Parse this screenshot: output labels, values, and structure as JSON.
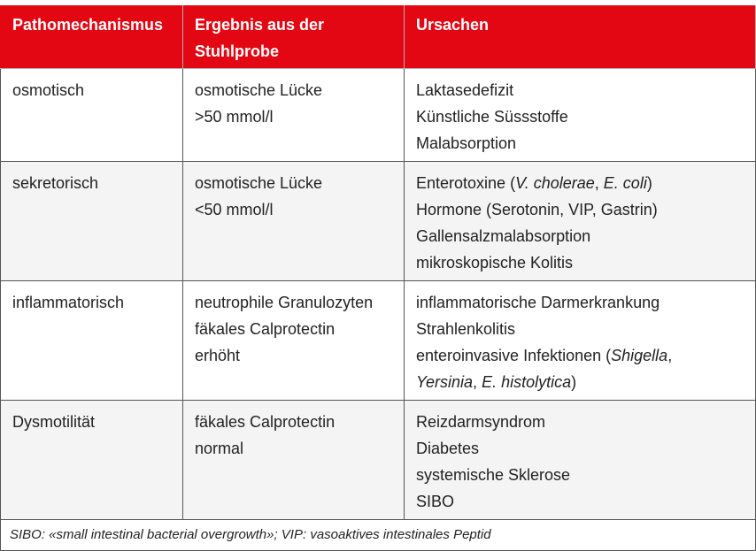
{
  "table": {
    "headers": [
      "Pathomechanismus",
      "Ergebnis aus der Stuhlprobe",
      "Ursachen"
    ],
    "accent_color": "#e30613",
    "rows": [
      {
        "mechanism": "osmotisch",
        "result": [
          [
            {
              "t": "osmotische Lücke"
            }
          ],
          [
            {
              "t": ">50 mmol/l"
            }
          ]
        ],
        "causes": [
          [
            {
              "t": "Laktasedefizit"
            }
          ],
          [
            {
              "t": "Künstliche Süssstoffe"
            }
          ],
          [
            {
              "t": "Malabsorption"
            }
          ]
        ]
      },
      {
        "mechanism": "sekretorisch",
        "result": [
          [
            {
              "t": "osmotische Lücke"
            }
          ],
          [
            {
              "t": "<50 mmol/l"
            }
          ]
        ],
        "causes": [
          [
            {
              "t": "Enterotoxine ("
            },
            {
              "t": "V. cholerae",
              "i": true
            },
            {
              "t": ", "
            },
            {
              "t": "E. coli",
              "i": true
            },
            {
              "t": ")"
            }
          ],
          [
            {
              "t": "Hormone (Serotonin, VIP, Gastrin)"
            }
          ],
          [
            {
              "t": "Gallensalzmalabsorption"
            }
          ],
          [
            {
              "t": "mikroskopische Kolitis"
            }
          ]
        ]
      },
      {
        "mechanism": "inflammatorisch",
        "result": [
          [
            {
              "t": "neutrophile Granulozyten"
            }
          ],
          [
            {
              "t": "fäkales Calprotectin"
            }
          ],
          [
            {
              "t": "erhöht"
            }
          ]
        ],
        "causes": [
          [
            {
              "t": "inflammatorische Darmerkrankung"
            }
          ],
          [
            {
              "t": "Strahlenkolitis"
            }
          ],
          [
            {
              "t": "enteroinvasive Infektionen ("
            },
            {
              "t": "Shigella",
              "i": true
            },
            {
              "t": ","
            }
          ],
          [
            {
              "t": "Yersinia",
              "i": true
            },
            {
              "t": ", "
            },
            {
              "t": "E. histolytica",
              "i": true
            },
            {
              "t": ")"
            }
          ]
        ]
      },
      {
        "mechanism": "Dysmotilität",
        "result": [
          [
            {
              "t": "fäkales Calprotectin"
            }
          ],
          [
            {
              "t": "normal"
            }
          ]
        ],
        "causes": [
          [
            {
              "t": "Reizdarmsyndrom"
            }
          ],
          [
            {
              "t": "Diabetes"
            }
          ],
          [
            {
              "t": "systemische Sklerose"
            }
          ],
          [
            {
              "t": "SIBO"
            }
          ]
        ]
      }
    ],
    "footnote": "SIBO: «small intestinal bacterial overgrowth»; VIP: vasoaktives intestinales Peptid"
  }
}
